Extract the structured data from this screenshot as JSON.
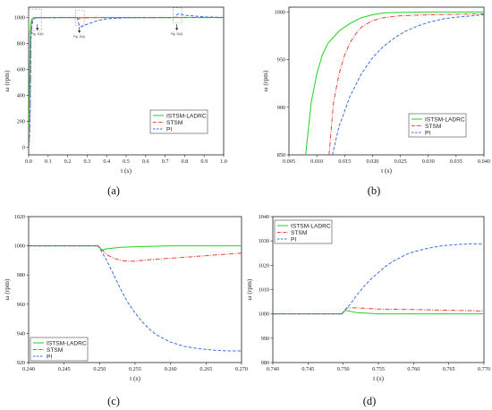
{
  "colors": {
    "istsm": "#1fd31f",
    "stsm": "#e8423a",
    "pi": "#3a6fe0"
  },
  "chart_data": [
    {
      "panel": "a",
      "caption": "(a)",
      "type": "line",
      "xlabel": "t (s)",
      "ylabel": "ω (rpm)",
      "xlim": [
        0,
        1.0
      ],
      "ylim": [
        -60,
        1080
      ],
      "xticks": [
        "0.0",
        "0.1",
        "0.2",
        "0.3",
        "0.4",
        "0.5",
        "0.6",
        "0.7",
        "0.8",
        "0.9",
        "1.0"
      ],
      "yticks": [
        "0",
        "200",
        "400",
        "600",
        "800",
        "1000"
      ],
      "legend": {
        "position": "bottom-right",
        "labels": [
          "ISTSM-LADRC",
          "STSM",
          "PI"
        ]
      },
      "annotations": [
        {
          "text": "Fig. 11(b)",
          "x": 0.045,
          "y": 900
        },
        {
          "text": "Fig. 11(c)",
          "x": 0.26,
          "y": 880
        },
        {
          "text": "Fig. 11(d)",
          "x": 0.76,
          "y": 900
        }
      ],
      "series": [
        {
          "name": "ISTSM-LADRC",
          "style": "solid",
          "x": [
            0,
            0.004,
            0.008,
            0.01,
            0.012,
            0.015,
            0.018,
            0.02,
            0.025,
            0.03,
            0.04,
            0.25,
            0.252,
            0.255,
            0.26,
            0.27,
            0.75,
            0.752,
            0.76,
            0.77,
            1.0
          ],
          "y": [
            0,
            420,
            850,
            935,
            960,
            978,
            990,
            996,
            999,
            1000,
            1000,
            1000,
            997,
            999,
            1000,
            1000,
            1000,
            1001,
            1000,
            1000,
            1000
          ]
        },
        {
          "name": "STSM",
          "style": "dashdot",
          "x": [
            0,
            0.004,
            0.008,
            0.012,
            0.015,
            0.018,
            0.02,
            0.025,
            0.03,
            0.04,
            0.25,
            0.255,
            0.26,
            0.27,
            0.3,
            0.4,
            0.75,
            0.76,
            0.8,
            1.0
          ],
          "y": [
            0,
            80,
            300,
            850,
            940,
            975,
            990,
            996,
            998,
            999,
            1000,
            992,
            990,
            995,
            998,
            1000,
            1000,
            1002,
            1001,
            1000
          ]
        },
        {
          "name": "PI",
          "style": "dashed",
          "x": [
            0,
            0.004,
            0.008,
            0.012,
            0.015,
            0.02,
            0.025,
            0.03,
            0.04,
            0.25,
            0.255,
            0.26,
            0.27,
            0.3,
            0.35,
            0.4,
            0.5,
            0.75,
            0.76,
            0.77,
            0.8,
            0.9,
            1.0
          ],
          "y": [
            0,
            50,
            250,
            850,
            905,
            965,
            985,
            993,
            998,
            1000,
            960,
            940,
            928,
            948,
            975,
            990,
            998,
            1000,
            1020,
            1029,
            1018,
            1005,
            1001
          ]
        }
      ]
    },
    {
      "panel": "b",
      "caption": "(b)",
      "type": "line",
      "xlabel": "t (s)",
      "ylabel": "ω (rpm)",
      "xlim": [
        0.005,
        0.04
      ],
      "ylim": [
        850,
        1005
      ],
      "xticks": [
        "0.005",
        "0.010",
        "0.015",
        "0.020",
        "0.025",
        "0.030",
        "0.035",
        "0.040"
      ],
      "yticks": [
        "850",
        "900",
        "950",
        "1000"
      ],
      "legend": {
        "position": "bottom-right",
        "labels": [
          "ISTSM-LADRC",
          "STSM",
          "PI"
        ]
      },
      "series": [
        {
          "name": "ISTSM-LADRC",
          "style": "solid",
          "x": [
            0.008,
            0.009,
            0.01,
            0.011,
            0.012,
            0.014,
            0.016,
            0.018,
            0.02,
            0.022,
            0.025,
            0.03,
            0.04
          ],
          "y": [
            850,
            905,
            935,
            955,
            967,
            980,
            988,
            994,
            997,
            999,
            999.5,
            1000,
            1000
          ]
        },
        {
          "name": "STSM",
          "style": "dashdot",
          "x": [
            0.0122,
            0.013,
            0.014,
            0.015,
            0.016,
            0.017,
            0.018,
            0.02,
            0.022,
            0.025,
            0.03,
            0.035,
            0.04
          ],
          "y": [
            850,
            905,
            935,
            955,
            968,
            977,
            984,
            991,
            994,
            996,
            997,
            997.5,
            998
          ]
        },
        {
          "name": "PI",
          "style": "dashed",
          "x": [
            0.0128,
            0.014,
            0.016,
            0.018,
            0.02,
            0.022,
            0.024,
            0.026,
            0.028,
            0.03,
            0.033,
            0.036,
            0.04
          ],
          "y": [
            850,
            880,
            912,
            935,
            952,
            964,
            973,
            980,
            985,
            989,
            993,
            995,
            997
          ]
        }
      ]
    },
    {
      "panel": "c",
      "caption": "(c)",
      "type": "line",
      "xlabel": "t (s)",
      "ylabel": "ω (rpm)",
      "xlim": [
        0.24,
        0.27
      ],
      "ylim": [
        920,
        1020
      ],
      "xticks": [
        "0.240",
        "0.245",
        "0.250",
        "0.255",
        "0.260",
        "0.265",
        "0.270"
      ],
      "yticks": [
        "920",
        "940",
        "960",
        "980",
        "1000",
        "1020"
      ],
      "legend": {
        "position": "bottom-left",
        "labels": [
          "ISTSM-LADRC",
          "STSM",
          "PI"
        ]
      },
      "series": [
        {
          "name": "ISTSM-LADRC",
          "style": "solid",
          "x": [
            0.24,
            0.2498,
            0.2503,
            0.251,
            0.253,
            0.256,
            0.26,
            0.265,
            0.27
          ],
          "y": [
            1000,
            1000,
            997,
            998,
            999,
            999.5,
            1000,
            1000,
            1000
          ]
        },
        {
          "name": "STSM",
          "style": "dashdot",
          "x": [
            0.24,
            0.2498,
            0.251,
            0.252,
            0.253,
            0.254,
            0.255,
            0.257,
            0.26,
            0.263,
            0.267,
            0.27
          ],
          "y": [
            1000,
            1000,
            994,
            991.5,
            990,
            989.5,
            989.5,
            990.5,
            991.5,
            992.5,
            994,
            995
          ]
        },
        {
          "name": "PI",
          "style": "dashed",
          "x": [
            0.24,
            0.2498,
            0.251,
            0.252,
            0.253,
            0.254,
            0.255,
            0.256,
            0.257,
            0.258,
            0.26,
            0.262,
            0.264,
            0.266,
            0.268,
            0.27
          ],
          "y": [
            1000,
            1000,
            990,
            980,
            970,
            961,
            954,
            948,
            943,
            939,
            934,
            931,
            929.5,
            928.5,
            928,
            928
          ]
        }
      ]
    },
    {
      "panel": "d",
      "caption": "(d)",
      "type": "line",
      "xlabel": "t (s)",
      "ylabel": "ω (rpm)",
      "xlim": [
        0.74,
        0.77
      ],
      "ylim": [
        980,
        1040
      ],
      "xticks": [
        "0.740",
        "0.745",
        "0.750",
        "0.755",
        "0.760",
        "0.765",
        "0.770"
      ],
      "yticks": [
        "980",
        "990",
        "1000",
        "1010",
        "1020",
        "1030",
        "1040"
      ],
      "legend": {
        "position": "top-left",
        "labels": [
          "ISTSM-LADRC",
          "STSM",
          "PI"
        ]
      },
      "series": [
        {
          "name": "ISTSM-LADRC",
          "style": "solid",
          "x": [
            0.74,
            0.7498,
            0.7503,
            0.752,
            0.755,
            0.76,
            0.77
          ],
          "y": [
            1000,
            1000,
            1001.5,
            1000.5,
            1000,
            1000,
            1000
          ]
        },
        {
          "name": "STSM",
          "style": "dashdot",
          "x": [
            0.74,
            0.7498,
            0.7505,
            0.752,
            0.755,
            0.76,
            0.765,
            0.77
          ],
          "y": [
            1000,
            1000,
            1002.5,
            1002.5,
            1002,
            1001.8,
            1001.5,
            1001.2
          ]
        },
        {
          "name": "PI",
          "style": "dashed",
          "x": [
            0.74,
            0.7498,
            0.751,
            0.752,
            0.753,
            0.754,
            0.755,
            0.756,
            0.757,
            0.758,
            0.759,
            0.76,
            0.762,
            0.764,
            0.766,
            0.768,
            0.77
          ],
          "y": [
            1000,
            1000,
            1004,
            1008,
            1011.5,
            1014.5,
            1017,
            1019.5,
            1021.5,
            1023,
            1024.5,
            1025.5,
            1027,
            1028,
            1028.5,
            1028.8,
            1028.8
          ]
        }
      ]
    }
  ]
}
